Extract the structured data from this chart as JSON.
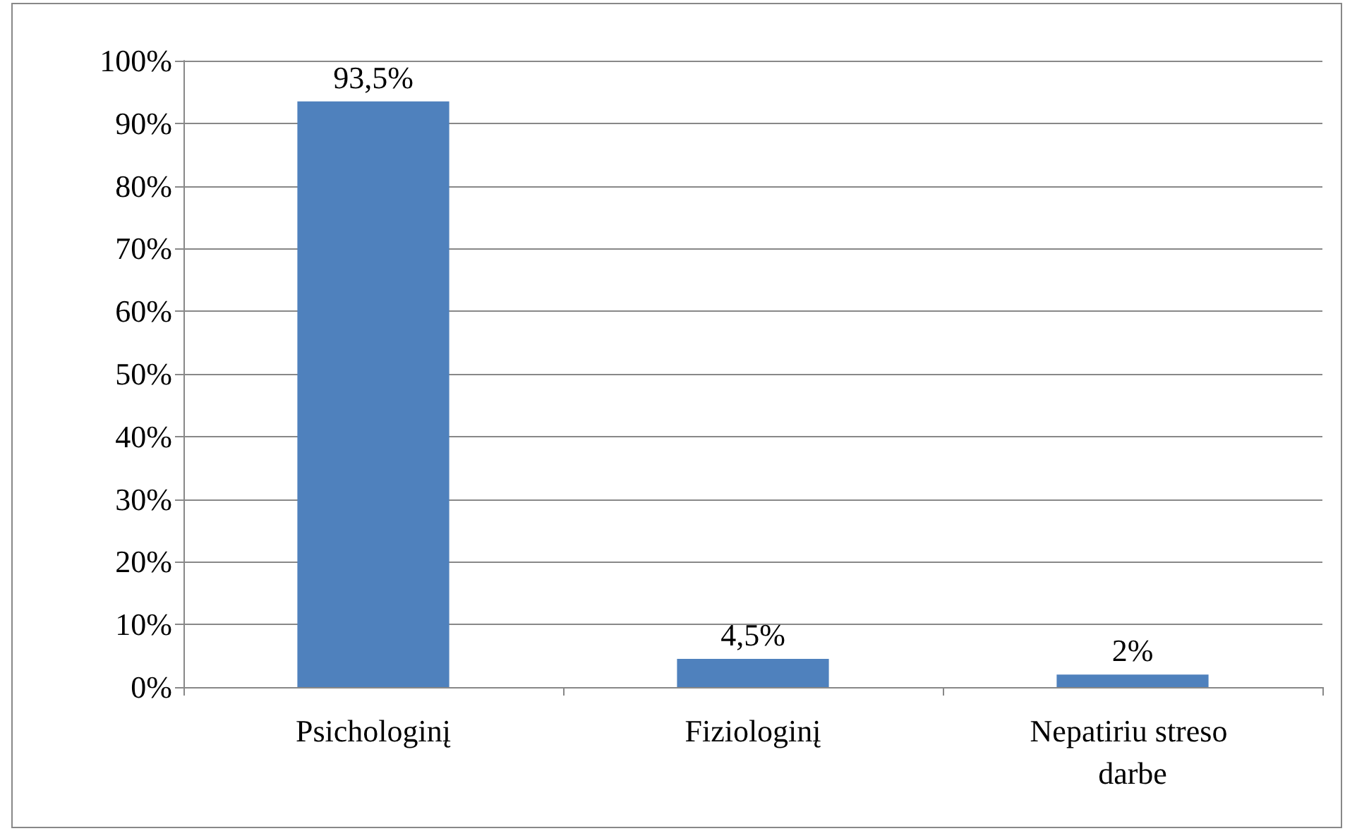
{
  "chart_data": {
    "type": "bar",
    "categories": [
      "Psichologinį",
      "Fiziologinį",
      "Nepatiriu streso darbe"
    ],
    "values": [
      93.5,
      4.5,
      2
    ],
    "color": "#4f81bd",
    "value_labels": [
      "93,5%",
      "4,5%",
      "2%"
    ],
    "ylim": [
      0,
      100
    ],
    "yticks": [
      {
        "value": 0,
        "label": "0%"
      },
      {
        "value": 10,
        "label": "10%"
      },
      {
        "value": 20,
        "label": "20%"
      },
      {
        "value": 30,
        "label": "30%"
      },
      {
        "value": 40,
        "label": "40%"
      },
      {
        "value": 50,
        "label": "50%"
      },
      {
        "value": 60,
        "label": "60%"
      },
      {
        "value": 70,
        "label": "70%"
      },
      {
        "value": 80,
        "label": "80%"
      },
      {
        "value": 90,
        "label": "90%"
      },
      {
        "value": 100,
        "label": "100%"
      }
    ],
    "grid": "y"
  }
}
